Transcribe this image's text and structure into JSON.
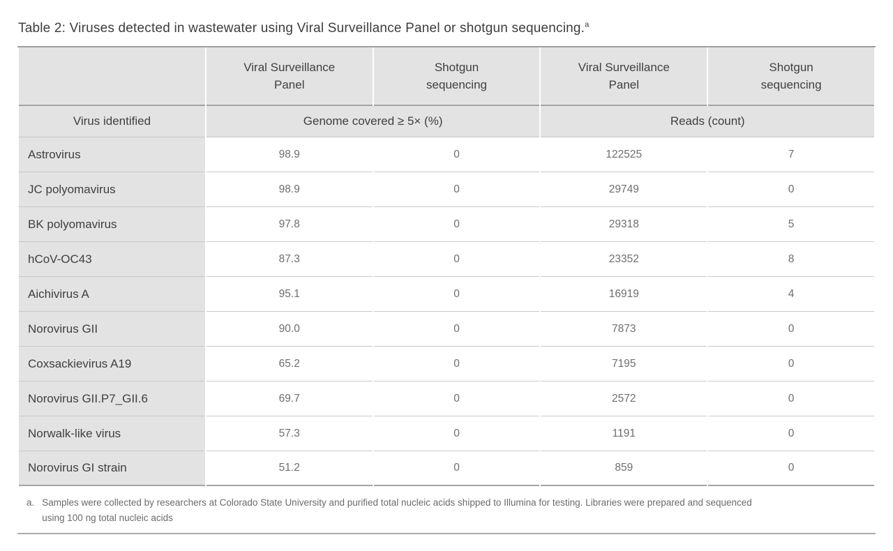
{
  "title": {
    "text": "Table 2: Viruses detected in wastewater using Viral Surveillance Panel or shotgun sequencing.",
    "superscript": "a"
  },
  "table": {
    "group_headers": [
      "Viral Surveillance\nPanel",
      "Shotgun\nsequencing",
      "Viral Surveillance\nPanel",
      "Shotgun\nsequencing"
    ],
    "sub_headers": {
      "virus_col": "Virus identified",
      "genome_group": "Genome covered ≥ 5× (%)",
      "reads_group": "Reads (count)"
    },
    "rows": [
      {
        "virus": "Astrovirus",
        "vsp_genome": "98.9",
        "shotgun_genome": "0",
        "vsp_reads": "122525",
        "shotgun_reads": "7"
      },
      {
        "virus": "JC polyomavirus",
        "vsp_genome": "98.9",
        "shotgun_genome": "0",
        "vsp_reads": "29749",
        "shotgun_reads": "0"
      },
      {
        "virus": "BK polyomavirus",
        "vsp_genome": "97.8",
        "shotgun_genome": "0",
        "vsp_reads": "29318",
        "shotgun_reads": "5"
      },
      {
        "virus": "hCoV-OC43",
        "vsp_genome": "87.3",
        "shotgun_genome": "0",
        "vsp_reads": "23352",
        "shotgun_reads": "8"
      },
      {
        "virus": "Aichivirus A",
        "vsp_genome": "95.1",
        "shotgun_genome": "0",
        "vsp_reads": "16919",
        "shotgun_reads": "4"
      },
      {
        "virus": "Norovirus GII",
        "vsp_genome": "90.0",
        "shotgun_genome": "0",
        "vsp_reads": "7873",
        "shotgun_reads": "0"
      },
      {
        "virus": "Coxsackievirus A19",
        "vsp_genome": "65.2",
        "shotgun_genome": "0",
        "vsp_reads": "7195",
        "shotgun_reads": "0"
      },
      {
        "virus": "Norovirus GII.P7_GII.6",
        "vsp_genome": "69.7",
        "shotgun_genome": "0",
        "vsp_reads": "2572",
        "shotgun_reads": "0"
      },
      {
        "virus": "Norwalk-like virus",
        "vsp_genome": "57.3",
        "shotgun_genome": "0",
        "vsp_reads": "1191",
        "shotgun_reads": "0"
      },
      {
        "virus": "Norovirus GI strain",
        "vsp_genome": "51.2",
        "shotgun_genome": "0",
        "vsp_reads": "859",
        "shotgun_reads": "0"
      }
    ]
  },
  "footnote": {
    "marker": "a.",
    "text": "Samples were collected by researchers at Colorado State University and purified total nucleic acids shipped to Illumina for testing. Libraries were prepared and sequenced\nusing 100 ng total nucleic acids"
  },
  "colors": {
    "header_background": "#e3e3e3",
    "dark_rule": "#9e9e9e",
    "light_divider": "#c9c9c9",
    "heading_text": "#3d3d3d",
    "value_text": "#6e6e6e",
    "footnote_text": "#6b6b6b"
  }
}
